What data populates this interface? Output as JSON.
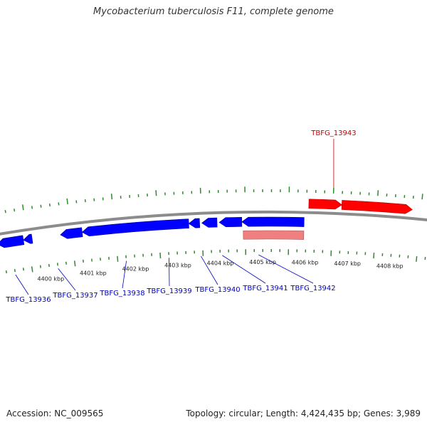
{
  "title": "Mycobacterium tuberculosis F11, complete genome",
  "footer": {
    "accession": "Accession: NC_009565",
    "summary": "Topology: circular; Length: 4,424,435 bp; Genes: 3,989"
  },
  "colors": {
    "backbone": "#8c8c8c",
    "tick": "#2e8b2e",
    "forward_gene": "#ff0000",
    "reverse_gene": "#0000ff",
    "rna_feature": "#f08080",
    "forward_label": "#c00000",
    "reverse_label": "#0000c0"
  },
  "scale": {
    "unit": "kbp",
    "labels": [
      "4400 kbp",
      "4401 kbp",
      "4402 kbp",
      "4403 kbp",
      "4404 kbp",
      "4405 kbp",
      "4406 kbp",
      "4407 kbp",
      "4408 kbp"
    ],
    "label_positions_kbp": [
      4400,
      4401,
      4402,
      4403,
      4404,
      4405,
      4406,
      4407,
      4408
    ]
  },
  "genes": {
    "forward": [
      {
        "label": "TBFG_13943",
        "start_kbp": 4406.45,
        "end_kbp": 4407.2
      },
      {
        "label": "",
        "start_kbp": 4407.2,
        "end_kbp": 4408.8
      }
    ],
    "reverse": [
      {
        "label": "TBFG_13936",
        "start_kbp": 4399.3,
        "end_kbp": 4399.9
      },
      {
        "label": "",
        "start_kbp": 4399.9,
        "end_kbp": 4400.1
      },
      {
        "label": "TBFG_13937",
        "start_kbp": 4400.75,
        "end_kbp": 4401.25
      },
      {
        "label": "TBFG_13938",
        "start_kbp": 4401.25,
        "end_kbp": 4403.7
      },
      {
        "label": "TBFG_13939",
        "start_kbp": 4403.7,
        "end_kbp": 4403.95
      },
      {
        "label": "TBFG_13940",
        "start_kbp": 4404.0,
        "end_kbp": 4404.35
      },
      {
        "label": "TBFG_13941",
        "start_kbp": 4404.4,
        "end_kbp": 4404.92
      },
      {
        "label": "TBFG_13942",
        "start_kbp": 4404.92,
        "end_kbp": 4406.35
      }
    ],
    "rna": [
      {
        "label": "",
        "start_kbp": 4404.95,
        "end_kbp": 4406.35
      }
    ]
  },
  "callouts": [
    {
      "label": "TBFG_13936",
      "strand": "reverse",
      "anchor_kbp": 4399.6
    },
    {
      "label": "TBFG_13937",
      "strand": "reverse",
      "anchor_kbp": 4400.6
    },
    {
      "label": "TBFG_13938",
      "strand": "reverse",
      "anchor_kbp": 4402.2
    },
    {
      "label": "TBFG_13939",
      "strand": "reverse",
      "anchor_kbp": 4403.2
    },
    {
      "label": "TBFG_13940",
      "strand": "reverse",
      "anchor_kbp": 4403.95
    },
    {
      "label": "TBFG_13941",
      "strand": "reverse",
      "anchor_kbp": 4404.45
    },
    {
      "label": "TBFG_13942",
      "strand": "reverse",
      "anchor_kbp": 4405.3
    },
    {
      "label": "TBFG_13943",
      "strand": "forward",
      "anchor_kbp": 4407.0
    }
  ]
}
